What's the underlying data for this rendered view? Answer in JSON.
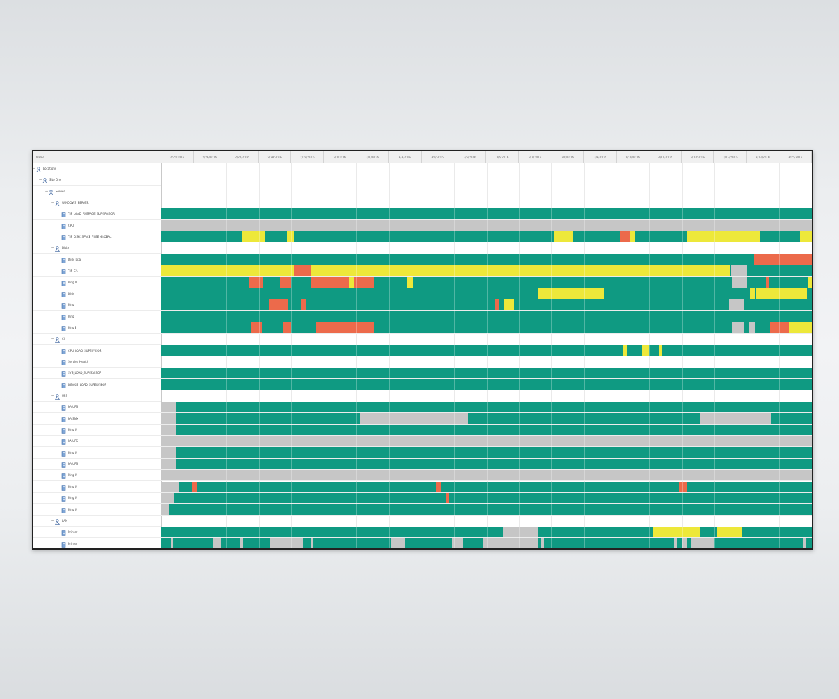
{
  "colors": {
    "ok": "#0f9a82",
    "warning": "#ede83a",
    "critical": "#ec6a4b",
    "unknown": "#c6c6c6",
    "frame": "#222222"
  },
  "tree_header": "Name",
  "date_headers": [
    "2/25/2016",
    "2/26/2016",
    "2/27/2016",
    "2/28/2016",
    "2/29/2016",
    "3/1/2016",
    "3/2/2016",
    "3/3/2016",
    "3/4/2016",
    "3/5/2016",
    "3/6/2016",
    "3/7/2016",
    "3/8/2016",
    "3/9/2016",
    "3/10/2016",
    "3/11/2016",
    "3/12/2016",
    "3/13/2016",
    "3/14/2016",
    "3/15/2016"
  ],
  "tree": [
    {
      "label": "Locations",
      "level": 0,
      "type": "group",
      "toggle": "−"
    },
    {
      "label": "Site One",
      "level": 1,
      "type": "group",
      "toggle": "−"
    },
    {
      "label": "Server",
      "level": 2,
      "type": "group",
      "toggle": "−"
    },
    {
      "label": "WINDOWS_SERVER",
      "level": 3,
      "type": "group",
      "toggle": "−"
    },
    {
      "label": "TIP_LOAD_AVERAGE_SUPERVISOR",
      "level": 4,
      "type": "sensor"
    },
    {
      "label": "CPU",
      "level": 4,
      "type": "sensor"
    },
    {
      "label": "TIP_DISK_SPACE_FREE_GLOBAL",
      "level": 4,
      "type": "sensor"
    },
    {
      "label": "Disks",
      "level": 3,
      "type": "group",
      "toggle": "−"
    },
    {
      "label": "Disk Total",
      "level": 4,
      "type": "sensor"
    },
    {
      "label": "TIP_C:\\",
      "level": 4,
      "type": "sensor"
    },
    {
      "label": "Ping D",
      "level": 4,
      "type": "sensor"
    },
    {
      "label": "Disk",
      "level": 4,
      "type": "sensor"
    },
    {
      "label": "Ping",
      "level": 4,
      "type": "sensor"
    },
    {
      "label": "Ping",
      "level": 4,
      "type": "sensor"
    },
    {
      "label": "Ping E",
      "level": 4,
      "type": "sensor"
    },
    {
      "label": "Cl",
      "level": 3,
      "type": "group",
      "toggle": "−"
    },
    {
      "label": "CPU_LOAD_SUPERVISOR",
      "level": 4,
      "type": "sensor"
    },
    {
      "label": "Service Health",
      "level": 4,
      "type": "sensor"
    },
    {
      "label": "SYS_LOAD_SUPERVISOR",
      "level": 4,
      "type": "sensor"
    },
    {
      "label": "DEVICE_LOAD_SUPERVISOR",
      "level": 4,
      "type": "sensor"
    },
    {
      "label": "UPS",
      "level": 3,
      "type": "group",
      "toggle": "−"
    },
    {
      "label": "PA UPS",
      "level": 4,
      "type": "sensor"
    },
    {
      "label": "PA SNM",
      "level": 4,
      "type": "sensor"
    },
    {
      "label": "Ping U",
      "level": 4,
      "type": "sensor"
    },
    {
      "label": "PA UPS",
      "level": 4,
      "type": "sensor"
    },
    {
      "label": "Ping U",
      "level": 4,
      "type": "sensor"
    },
    {
      "label": "PA UPS",
      "level": 4,
      "type": "sensor"
    },
    {
      "label": "Ping U",
      "level": 4,
      "type": "sensor"
    },
    {
      "label": "Ping U",
      "level": 4,
      "type": "sensor"
    },
    {
      "label": "Ping U",
      "level": 4,
      "type": "sensor"
    },
    {
      "label": "Ping U",
      "level": 4,
      "type": "sensor"
    },
    {
      "label": "LAN",
      "level": 3,
      "type": "group",
      "toggle": "−"
    },
    {
      "label": "Printer",
      "level": 4,
      "type": "sensor"
    },
    {
      "label": "Printer",
      "level": 4,
      "type": "sensor"
    }
  ],
  "timeline_rows": [
    {
      "row": 4,
      "segments": [
        [
          0,
          1,
          "ok"
        ]
      ]
    },
    {
      "row": 5,
      "segments": [
        [
          0,
          1,
          "unknown"
        ]
      ]
    },
    {
      "row": 6,
      "segments": [
        [
          0,
          1,
          "ok"
        ],
        [
          0.125,
          0.16,
          "warning"
        ],
        [
          0.193,
          0.205,
          "warning"
        ],
        [
          0.603,
          0.633,
          "warning"
        ],
        [
          0.705,
          0.72,
          "critical"
        ],
        [
          0.72,
          0.728,
          "warning"
        ],
        [
          0.808,
          0.92,
          "warning"
        ],
        [
          0.982,
          1,
          "warning"
        ]
      ]
    },
    {
      "row": 8,
      "segments": [
        [
          0,
          1,
          "ok"
        ],
        [
          0.91,
          1,
          "critical"
        ]
      ]
    },
    {
      "row": 9,
      "segments": [
        [
          0,
          1,
          "warning"
        ],
        [
          0.204,
          0.231,
          "critical"
        ],
        [
          0.874,
          1,
          "ok"
        ],
        [
          0.875,
          0.9,
          "unknown"
        ]
      ]
    },
    {
      "row": 10,
      "segments": [
        [
          0,
          1,
          "ok"
        ],
        [
          0.135,
          0.156,
          "critical"
        ],
        [
          0.183,
          0.2,
          "critical"
        ],
        [
          0.23,
          0.288,
          "critical"
        ],
        [
          0.288,
          0.297,
          "warning"
        ],
        [
          0.297,
          0.327,
          "critical"
        ],
        [
          0.378,
          0.386,
          "warning"
        ],
        [
          0.877,
          0.9,
          "unknown"
        ],
        [
          0.93,
          0.934,
          "critical"
        ],
        [
          0.995,
          1,
          "warning"
        ]
      ]
    },
    {
      "row": 11,
      "segments": [
        [
          0,
          1,
          "ok"
        ],
        [
          0.58,
          0.68,
          "warning"
        ],
        [
          0.905,
          0.912,
          "warning"
        ],
        [
          0.915,
          0.993,
          "warning"
        ]
      ]
    },
    {
      "row": 12,
      "segments": [
        [
          0,
          1,
          "ok"
        ],
        [
          0.165,
          0.195,
          "critical"
        ],
        [
          0.215,
          0.222,
          "critical"
        ],
        [
          0.512,
          0.52,
          "critical"
        ],
        [
          0.527,
          0.542,
          "warning"
        ],
        [
          0.872,
          0.895,
          "unknown"
        ]
      ]
    },
    {
      "row": 13,
      "segments": [
        [
          0,
          1,
          "ok"
        ]
      ]
    },
    {
      "row": 14,
      "segments": [
        [
          0,
          1,
          "ok"
        ],
        [
          0.138,
          0.155,
          "critical"
        ],
        [
          0.188,
          0.2,
          "critical"
        ],
        [
          0.238,
          0.328,
          "critical"
        ],
        [
          0.877,
          0.895,
          "unknown"
        ],
        [
          0.903,
          0.913,
          "unknown"
        ],
        [
          0.935,
          0.965,
          "critical"
        ],
        [
          0.965,
          1,
          "warning"
        ]
      ]
    },
    {
      "row": 16,
      "segments": [
        [
          0,
          1,
          "ok"
        ],
        [
          0.71,
          0.716,
          "warning"
        ],
        [
          0.74,
          0.75,
          "warning"
        ],
        [
          0.765,
          0.77,
          "warning"
        ]
      ]
    },
    {
      "row": 18,
      "segments": [
        [
          0,
          1,
          "ok"
        ]
      ]
    },
    {
      "row": 19,
      "segments": [
        [
          0,
          1,
          "ok"
        ]
      ]
    },
    {
      "row": 21,
      "segments": [
        [
          0,
          1,
          "ok"
        ],
        [
          0,
          0.024,
          "unknown"
        ]
      ]
    },
    {
      "row": 22,
      "segments": [
        [
          0,
          1,
          "ok"
        ],
        [
          0,
          0.024,
          "unknown"
        ],
        [
          0.305,
          0.472,
          "unknown"
        ],
        [
          0.828,
          0.937,
          "unknown"
        ]
      ]
    },
    {
      "row": 23,
      "segments": [
        [
          0,
          1,
          "ok"
        ],
        [
          0,
          0.024,
          "unknown"
        ]
      ]
    },
    {
      "row": 24,
      "segments": [
        [
          0,
          1,
          "unknown"
        ]
      ]
    },
    {
      "row": 25,
      "segments": [
        [
          0,
          1,
          "ok"
        ],
        [
          0,
          0.024,
          "unknown"
        ]
      ]
    },
    {
      "row": 26,
      "segments": [
        [
          0,
          1,
          "ok"
        ],
        [
          0,
          0.024,
          "unknown"
        ]
      ]
    },
    {
      "row": 27,
      "segments": [
        [
          0,
          1,
          "unknown"
        ]
      ]
    },
    {
      "row": 28,
      "segments": [
        [
          0,
          1,
          "ok"
        ],
        [
          0,
          0.028,
          "unknown"
        ],
        [
          0.047,
          0.054,
          "critical"
        ],
        [
          0.423,
          0.43,
          "critical"
        ],
        [
          0.795,
          0.808,
          "critical"
        ]
      ]
    },
    {
      "row": 29,
      "segments": [
        [
          0,
          1,
          "ok"
        ],
        [
          0,
          0.02,
          "unknown"
        ],
        [
          0.438,
          0.443,
          "critical"
        ]
      ]
    },
    {
      "row": 30,
      "segments": [
        [
          0,
          1,
          "ok"
        ],
        [
          0,
          0.012,
          "unknown"
        ]
      ]
    },
    {
      "row": 32,
      "segments": [
        [
          0,
          1,
          "ok"
        ],
        [
          0.525,
          0.578,
          "unknown"
        ],
        [
          0.756,
          0.828,
          "warning"
        ],
        [
          0.855,
          0.893,
          "warning"
        ]
      ]
    },
    {
      "row": 33,
      "segments": [
        [
          0,
          1,
          "ok"
        ],
        [
          0.015,
          0.018,
          "unknown"
        ],
        [
          0.08,
          0.092,
          "unknown"
        ],
        [
          0.122,
          0.126,
          "unknown"
        ],
        [
          0.168,
          0.218,
          "unknown"
        ],
        [
          0.23,
          0.234,
          "unknown"
        ],
        [
          0.353,
          0.375,
          "unknown"
        ],
        [
          0.447,
          0.463,
          "unknown"
        ],
        [
          0.495,
          0.578,
          "unknown"
        ],
        [
          0.584,
          0.588,
          "unknown"
        ],
        [
          0.789,
          0.793,
          "unknown"
        ],
        [
          0.814,
          0.818,
          "unknown"
        ],
        [
          0.8,
          0.808,
          "unknown"
        ],
        [
          0.818,
          0.85,
          "unknown"
        ],
        [
          0.986,
          0.99,
          "unknown"
        ]
      ]
    }
  ]
}
